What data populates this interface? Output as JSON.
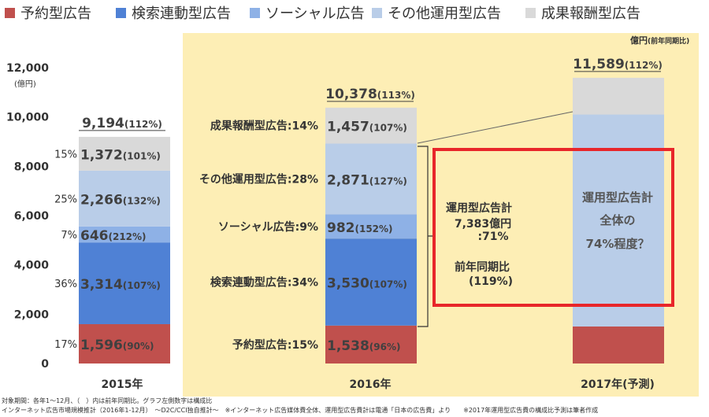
{
  "legend": [
    {
      "label": "予約型広告",
      "color": "#c0504d"
    },
    {
      "label": "検索連動型広告",
      "color": "#4f81d5"
    },
    {
      "label": "ソーシャル広告",
      "color": "#8eb1e6"
    },
    {
      "label": "その他運用型広告",
      "color": "#b9cde8"
    },
    {
      "label": "成果報酬型広告",
      "color": "#d9d9d9"
    }
  ],
  "unit_label": "億円",
  "unit_label_small": "(前年同期比)",
  "chart_data": {
    "type": "bar",
    "stacked": true,
    "ylabel": "(億円)",
    "ylim": [
      0,
      12000
    ],
    "yticks": [
      "0",
      "2,000",
      "4,000",
      "6,000",
      "8,000",
      "10,000",
      "12,000"
    ],
    "categories": [
      "2015年",
      "2016年",
      "2017年(予測)"
    ],
    "series": [
      {
        "name": "予約型広告",
        "values": [
          1596,
          1538,
          1500
        ],
        "labels": [
          "1,596",
          "1,538",
          ""
        ],
        "yoy": [
          "(90%)",
          "(96%)",
          ""
        ],
        "pct": [
          "17%",
          "",
          ""
        ]
      },
      {
        "name": "検索連動型広告",
        "values": [
          3314,
          3530,
          0
        ],
        "labels": [
          "3,314",
          "3,530",
          ""
        ],
        "yoy": [
          "(107%)",
          "(107%)",
          ""
        ],
        "pct": [
          "36%",
          "",
          ""
        ]
      },
      {
        "name": "ソーシャル広告",
        "values": [
          646,
          982,
          0
        ],
        "labels": [
          "646",
          "982",
          ""
        ],
        "yoy": [
          "(212%)",
          "(152%)",
          ""
        ],
        "pct": [
          "7%",
          "",
          ""
        ]
      },
      {
        "name": "その他運用型広告",
        "values": [
          2266,
          2871,
          8600
        ],
        "labels": [
          "2,266",
          "2,871",
          ""
        ],
        "yoy": [
          "(132%)",
          "(127%)",
          ""
        ],
        "pct": [
          "25%",
          "",
          ""
        ]
      },
      {
        "name": "成果報酬型広告",
        "values": [
          1372,
          1457,
          1489
        ],
        "labels": [
          "1,372",
          "1,457",
          ""
        ],
        "yoy": [
          "(101%)",
          "(107%)",
          ""
        ],
        "pct": [
          "15%",
          "",
          ""
        ]
      }
    ],
    "totals": [
      {
        "value": "9,194",
        "yoy": "(112%)"
      },
      {
        "value": "10,378",
        "yoy": "(113%)"
      },
      {
        "value": "11,589",
        "yoy": "(112%)"
      }
    ],
    "segment_labels_2016": [
      "予約型広告:15%",
      "検索連動型広告:34%",
      "ソーシャル広告:9%",
      "その他運用型広告:28%",
      "成果報酬型広告:14%"
    ],
    "annotations": {
      "bracket_lines": [
        "運用型広告計",
        "7,383億円",
        ":71%",
        "前年同期比",
        "(119%)"
      ],
      "projection_lines": [
        "運用型広告計",
        "全体の",
        "74%程度？"
      ]
    }
  },
  "footnotes": [
    "対象期間：各年1～12月、（　）内は前年同期比。グラフ左側数字は構成比",
    "インターネット広告市場規模推計（2016年1-12月）　～D2C/CCI独自推計～　※インターネット広告媒体費全体、運用型広告費計は電通「日本の広告費」より　　※2017年運用型広告費の構成比予測は筆者作成"
  ],
  "colors": {
    "highlight_bg": "#fdeeb5",
    "red_box": "#e8262a"
  }
}
